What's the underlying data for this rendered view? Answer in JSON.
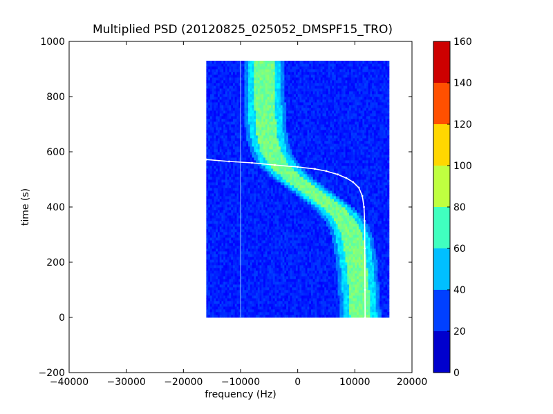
{
  "chart_data": {
    "type": "heatmap",
    "title": "Multiplied PSD (20120825_025052_DMSPF15_TRO)",
    "xlabel": "frequency (Hz)",
    "ylabel": "time (s)",
    "xlim": [
      -40000,
      20000
    ],
    "ylim": [
      -200,
      1000
    ],
    "xticks": [
      -40000,
      -30000,
      -20000,
      -10000,
      0,
      10000,
      20000
    ],
    "xtick_labels": [
      "−40000",
      "−30000",
      "−20000",
      "−10000",
      "0",
      "10000",
      "20000"
    ],
    "yticks": [
      -200,
      0,
      200,
      400,
      600,
      800,
      1000
    ],
    "ytick_labels": [
      "−200",
      "0",
      "200",
      "400",
      "600",
      "800",
      "1000"
    ],
    "data_extent": {
      "x": [
        -16000,
        16000
      ],
      "y": [
        0,
        930
      ]
    },
    "background_level": 25,
    "vertical_line_freq": -10000,
    "signal_band": {
      "center_freq_at_time": [
        [
          0,
          11000
        ],
        [
          100,
          10700
        ],
        [
          200,
          10300
        ],
        [
          300,
          9500
        ],
        [
          350,
          8400
        ],
        [
          400,
          6200
        ],
        [
          450,
          2800
        ],
        [
          500,
          -500
        ],
        [
          550,
          -3200
        ],
        [
          600,
          -4700
        ],
        [
          650,
          -5300
        ],
        [
          700,
          -5600
        ],
        [
          800,
          -5800
        ],
        [
          930,
          -5900
        ]
      ],
      "core_level": 78,
      "halo_level": 55,
      "edge_level": 40
    },
    "white_curve": [
      [
        -16000,
        572
      ],
      [
        -12000,
        565
      ],
      [
        -8000,
        560
      ],
      [
        -4000,
        552
      ],
      [
        0,
        545
      ],
      [
        3000,
        538
      ],
      [
        5000,
        530
      ],
      [
        7000,
        518
      ],
      [
        8500,
        505
      ],
      [
        9700,
        490
      ],
      [
        10700,
        470
      ],
      [
        11300,
        440
      ],
      [
        11600,
        400
      ],
      [
        11700,
        350
      ],
      [
        11750,
        250
      ],
      [
        11780,
        100
      ],
      [
        11800,
        0
      ]
    ],
    "colorbar": {
      "min": 0,
      "max": 160,
      "step": 20,
      "tick_labels": [
        "0",
        "20",
        "40",
        "60",
        "80",
        "100",
        "120",
        "140",
        "160"
      ],
      "colors": [
        "#0000cd",
        "#0040ff",
        "#00bfff",
        "#40ffbf",
        "#bfff40",
        "#ffd700",
        "#ff5000",
        "#cd0000"
      ]
    }
  }
}
